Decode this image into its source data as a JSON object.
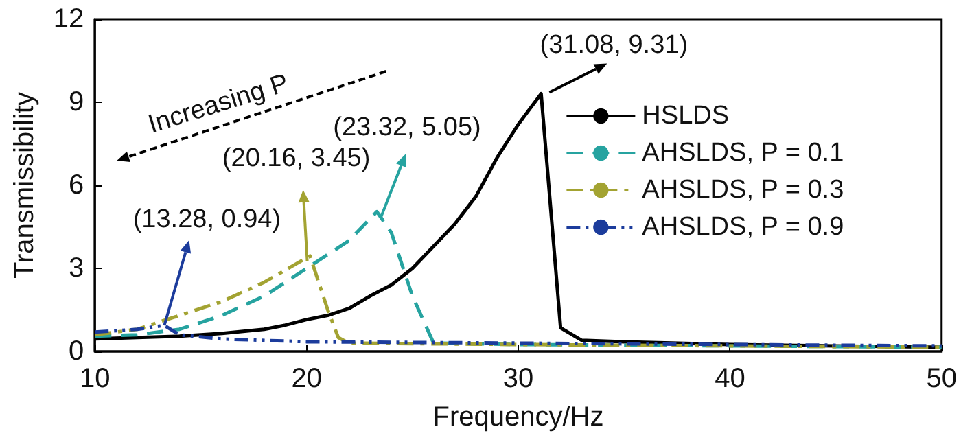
{
  "chart_data": {
    "type": "line",
    "xlabel": "Frequency/Hz",
    "ylabel": "Transmissibility",
    "xlim": [
      10,
      50
    ],
    "xticks": [
      10,
      20,
      30,
      40,
      50
    ],
    "ylim": [
      0,
      12
    ],
    "yticks": [
      0,
      3,
      6,
      9,
      12
    ],
    "grid": false,
    "legend": "top right",
    "marker": "none",
    "series": [
      {
        "name": "HSLDS",
        "color": "#000000",
        "line_style": "solid",
        "x": [
          10,
          12,
          14,
          16,
          18,
          19,
          20,
          21,
          22,
          23,
          24,
          25,
          26,
          27,
          28,
          29,
          30,
          31.08,
          32,
          33,
          35,
          40,
          45,
          50
        ],
        "values": [
          0.45,
          0.5,
          0.55,
          0.65,
          0.8,
          0.95,
          1.15,
          1.3,
          1.55,
          2.0,
          2.4,
          3.0,
          3.8,
          4.6,
          5.6,
          7.0,
          8.2,
          9.31,
          0.85,
          0.4,
          0.35,
          0.25,
          0.2,
          0.15
        ]
      },
      {
        "name": "AHSLDS, P = 0.1",
        "color": "#26a3a0",
        "line_style": "dashed",
        "x": [
          10,
          12,
          14,
          16,
          18,
          20,
          22,
          23.32,
          24,
          25,
          26,
          30,
          40,
          50
        ],
        "values": [
          0.55,
          0.6,
          0.8,
          1.3,
          2.0,
          3.0,
          4.0,
          5.05,
          4.3,
          2.0,
          0.3,
          0.25,
          0.2,
          0.15
        ]
      },
      {
        "name": "AHSLDS, P = 0.3",
        "color": "#a3a332",
        "line_style": "dashdot",
        "x": [
          10,
          12,
          14,
          16,
          18,
          20.16,
          21,
          21.5,
          22,
          30,
          50
        ],
        "values": [
          0.6,
          0.8,
          1.3,
          1.8,
          2.5,
          3.45,
          1.5,
          0.5,
          0.3,
          0.25,
          0.15
        ]
      },
      {
        "name": "AHSLDS, P = 0.9",
        "color": "#1c3c9c",
        "line_style": "dashdotdot",
        "x": [
          10,
          12,
          13.28,
          14,
          16,
          20,
          30,
          50
        ],
        "values": [
          0.7,
          0.8,
          0.94,
          0.6,
          0.45,
          0.35,
          0.3,
          0.2
        ]
      }
    ],
    "annotations": [
      {
        "text": "(31.08, 9.31)",
        "x": 31.08,
        "y": 9.31
      },
      {
        "text": "(23.32, 5.05)",
        "x": 23.32,
        "y": 5.05
      },
      {
        "text": "(20.16, 3.45)",
        "x": 20.16,
        "y": 3.45
      },
      {
        "text": "(13.28, 0.94)",
        "x": 13.28,
        "y": 0.94
      },
      "Increasing P"
    ]
  }
}
